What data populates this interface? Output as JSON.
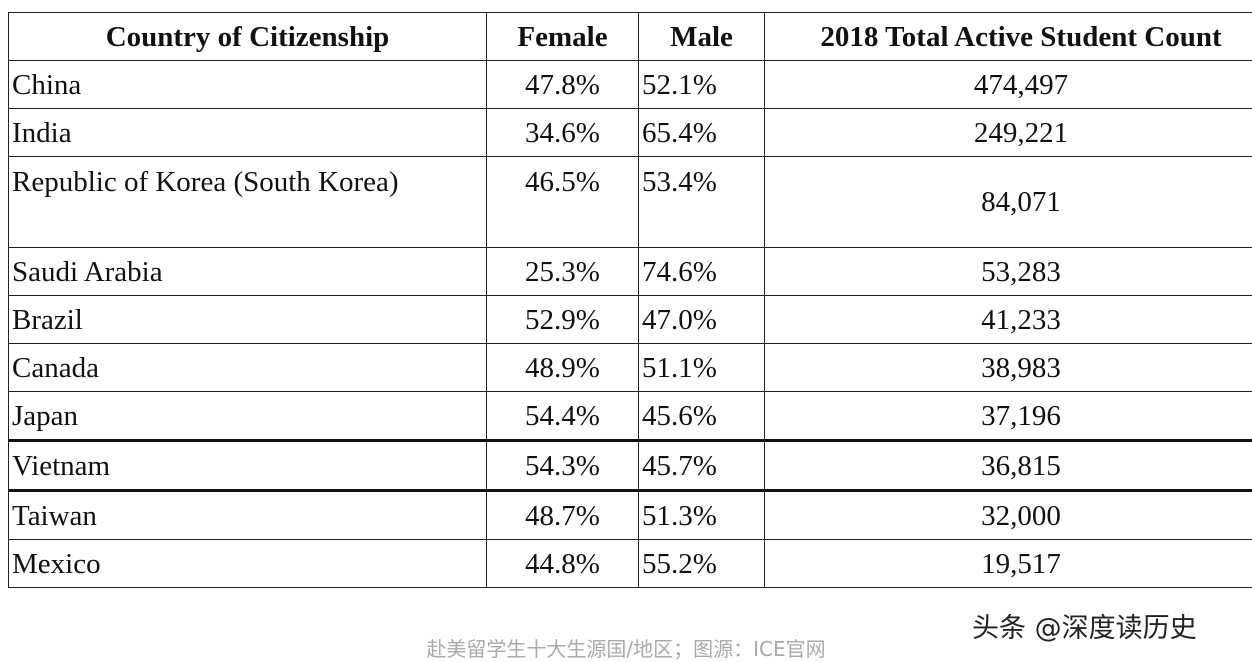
{
  "table": {
    "header": [
      "Country of Citizenship",
      "Female",
      "Male",
      "2018 Total Active Student Count"
    ],
    "rows": [
      [
        "China",
        "47.8%",
        "52.1%",
        "474,497"
      ],
      [
        "India",
        "34.6%",
        "65.4%",
        "249,221"
      ],
      [
        "Republic of Korea (South Korea)",
        "46.5%",
        "53.4%",
        "84,071"
      ],
      [
        "Saudi Arabia",
        "25.3%",
        "74.6%",
        "53,283"
      ],
      [
        "Brazil",
        "52.9%",
        "47.0%",
        "41,233"
      ],
      [
        "Canada",
        "48.9%",
        "51.1%",
        "38,983"
      ],
      [
        "Japan",
        "54.4%",
        "45.6%",
        "37,196"
      ],
      [
        "Vietnam",
        "54.3%",
        "45.7%",
        "36,815"
      ],
      [
        "Taiwan",
        "48.7%",
        "51.3%",
        "32,000"
      ],
      [
        "Mexico",
        "44.8%",
        "55.2%",
        "19,517"
      ]
    ]
  },
  "watermark": "头条 @深度读历史",
  "caption": "赴美留学生十大生源国/地区；图源：ICE官网"
}
